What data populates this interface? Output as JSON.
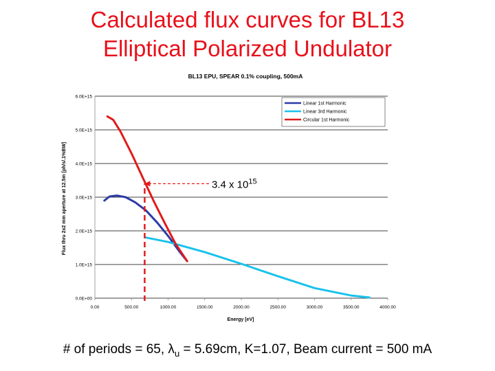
{
  "slide": {
    "title_line1": "Calculated flux curves for BL13",
    "title_line2": "Elliptical Polarized Undulator"
  },
  "chart_data": {
    "type": "line",
    "title": "BL13 EPU, SPEAR 0.1% coupling, 500mA",
    "xlabel": "Energy [eV]",
    "ylabel": "Flux thru 2x2 mm aperture at 12.5m [ph/s/.1%BW]",
    "xlim": [
      0,
      4000
    ],
    "ylim": [
      0,
      6000000000000000.0
    ],
    "xticks": [
      0,
      500,
      1000,
      1500,
      2000,
      2500,
      3000,
      3500,
      4000
    ],
    "xtick_labels": [
      "0.00",
      "500.00",
      "1000.00",
      "1500.00",
      "2000.00",
      "2500.00",
      "3000.00",
      "3500.00",
      "4000.00"
    ],
    "yticks": [
      0,
      1000000000000000.0,
      2000000000000000.0,
      3000000000000000.0,
      4000000000000000.0,
      5000000000000000.0,
      6000000000000000.0
    ],
    "ytick_labels": [
      "0.0E+00",
      "1.0E+15",
      "2.0E+15",
      "3.0E+15",
      "4.0E+15",
      "5.0E+15",
      "6.0E+15"
    ],
    "grid": "horizontal",
    "legend_position": "top-right",
    "series": [
      {
        "name": "Linear 1st Harmonic",
        "color": "#2b3aa8",
        "x": [
          130,
          200,
          300,
          420,
          550,
          700,
          850,
          1000,
          1150,
          1260
        ],
        "y": [
          2900000000000000.0,
          3020000000000000.0,
          3050000000000000.0,
          3000000000000000.0,
          2850000000000000.0,
          2600000000000000.0,
          2250000000000000.0,
          1850000000000000.0,
          1400000000000000.0,
          1100000000000000.0
        ]
      },
      {
        "name": "Linear 3rd Harmonic",
        "color": "#19c2ec",
        "x": [
          700,
          1000,
          1500,
          2000,
          2500,
          3000,
          3500,
          3750
        ],
        "y": [
          1800000000000000.0,
          1670000000000000.0,
          1370000000000000.0,
          1020000000000000.0,
          650000000000000.0,
          300000000000000.0,
          80000000000000.0,
          20000000000000.0
        ]
      },
      {
        "name": "Circular 1st Harmonic",
        "color": "#e21a1a",
        "x": [
          170,
          250,
          350,
          500,
          650,
          800,
          950,
          1100,
          1260
        ],
        "y": [
          5400000000000000.0,
          5300000000000000.0,
          4950000000000000.0,
          4300000000000000.0,
          3600000000000000.0,
          2900000000000000.0,
          2250000000000000.0,
          1620000000000000.0,
          1100000000000000.0
        ]
      }
    ],
    "annotation": {
      "base": "3.4 x 10",
      "exponent": "15",
      "x": 680,
      "y": 3400000000000000.0
    }
  },
  "footer": {
    "prefix": "# of periods = 65, λ",
    "sub": "u",
    "suffix": " = 5.69cm, K=1.07, Beam current = 500 mA"
  }
}
